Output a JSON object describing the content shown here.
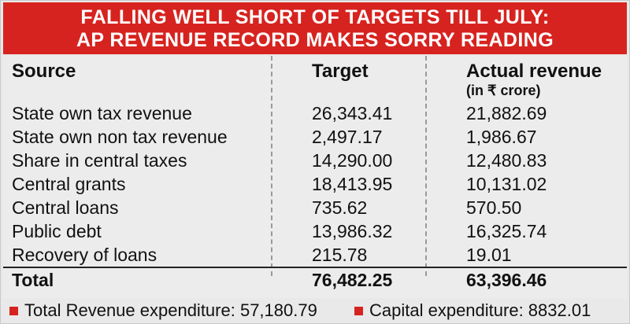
{
  "colors": {
    "accent": "#d7231f",
    "panel": "#ececec"
  },
  "title": {
    "line1": "FALLING WELL SHORT OF TARGETS TILL JULY:",
    "line2": "AP REVENUE RECORD MAKES SORRY READING"
  },
  "table": {
    "headers": {
      "source": "Source",
      "target": "Target",
      "actual": "Actual revenue",
      "unit": "(in ₹ crore)"
    },
    "rows": [
      {
        "source": "State own tax revenue",
        "target": "26,343.41",
        "actual": "21,882.69"
      },
      {
        "source": "State own non tax revenue",
        "target": "2,497.17",
        "actual": "1,986.67"
      },
      {
        "source": "Share in central taxes",
        "target": "14,290.00",
        "actual": "12,480.83"
      },
      {
        "source": "Central grants",
        "target": "18,413.95",
        "actual": "10,131.02"
      },
      {
        "source": "Central loans",
        "target": "735.62",
        "actual": "570.50"
      },
      {
        "source": "Public debt",
        "target": "13,986.32",
        "actual": "16,325.74"
      },
      {
        "source": "Recovery of loans",
        "target": "215.78",
        "actual": "19.01"
      }
    ],
    "total": {
      "source": "Total",
      "target": "76,482.25",
      "actual": "63,396.46"
    }
  },
  "footer": {
    "item1": "Total Revenue expenditure: 57,180.79",
    "item2": "Capital expenditure: 8832.01"
  },
  "chart_data": {
    "type": "table",
    "title": "FALLING WELL SHORT OF TARGETS TILL JULY: AP REVENUE RECORD MAKES SORRY READING",
    "columns": [
      "Source",
      "Target",
      "Actual revenue (in ₹ crore)"
    ],
    "categories": [
      "State own tax revenue",
      "State own non tax revenue",
      "Share in central taxes",
      "Central grants",
      "Central loans",
      "Public debt",
      "Recovery of loans",
      "Total"
    ],
    "series": [
      {
        "name": "Target",
        "values": [
          26343.41,
          2497.17,
          14290.0,
          18413.95,
          735.62,
          13986.32,
          215.78,
          76482.25
        ]
      },
      {
        "name": "Actual revenue",
        "values": [
          21882.69,
          1986.67,
          12480.83,
          10131.02,
          570.5,
          16325.74,
          19.01,
          63396.46
        ]
      }
    ]
  }
}
